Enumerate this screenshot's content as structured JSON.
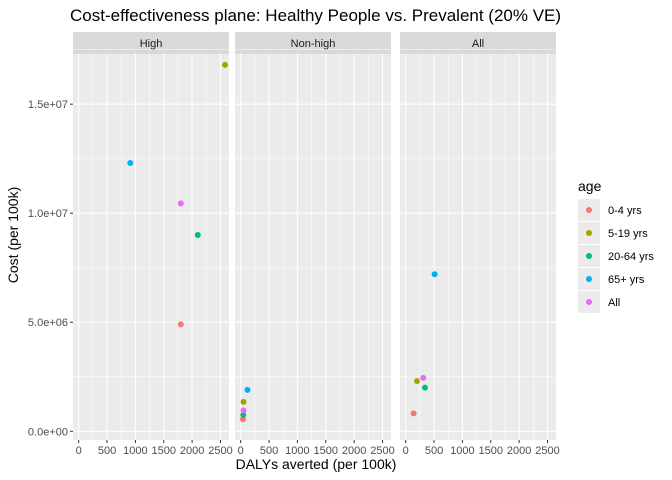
{
  "chart_data": {
    "type": "scatter",
    "title": "Cost-effectiveness plane: Healthy People vs. Prevalent (20% VE)",
    "xlabel": "DALYs averted (per 100k)",
    "ylabel": "Cost (per 100k)",
    "xlim": [
      -100,
      2650
    ],
    "ylim": [
      -400000,
      17300000
    ],
    "x_ticks": [
      0,
      500,
      1000,
      1500,
      2000,
      2500
    ],
    "x_tick_labels": [
      "0",
      "500",
      "1000",
      "1500",
      "2000",
      "2500"
    ],
    "y_ticks": [
      0,
      5000000,
      10000000,
      15000000
    ],
    "y_tick_labels": [
      "0.0e+00",
      "5.0e+06",
      "1.0e+07",
      "1.5e+07"
    ],
    "grid": true,
    "legend": {
      "title": "age",
      "placement": "right",
      "entries": [
        "0-4 yrs",
        "5-19 yrs",
        "20-64 yrs",
        "65+ yrs",
        "All"
      ]
    },
    "colors": {
      "0-4 yrs": "#F8766D",
      "5-19 yrs": "#A3A500",
      "20-64 yrs": "#00BF7D",
      "65+ yrs": "#00B0F6",
      "All": "#E76BF3"
    },
    "panel_background": "#EBEBEB",
    "strip_background": "#D9D9D9",
    "panels": [
      {
        "label": "High",
        "points": [
          {
            "series": "0-4 yrs",
            "x": 1800,
            "y": 4900000
          },
          {
            "series": "5-19 yrs",
            "x": 2580,
            "y": 16800000
          },
          {
            "series": "20-64 yrs",
            "x": 2100,
            "y": 9000000
          },
          {
            "series": "65+ yrs",
            "x": 910,
            "y": 12300000
          },
          {
            "series": "All",
            "x": 1800,
            "y": 10450000
          }
        ]
      },
      {
        "label": "Non-high",
        "points": [
          {
            "series": "0-4 yrs",
            "x": 40,
            "y": 550000
          },
          {
            "series": "5-19 yrs",
            "x": 50,
            "y": 1350000
          },
          {
            "series": "20-64 yrs",
            "x": 45,
            "y": 750000
          },
          {
            "series": "65+ yrs",
            "x": 120,
            "y": 1900000
          },
          {
            "series": "All",
            "x": 50,
            "y": 950000
          }
        ]
      },
      {
        "label": "All",
        "points": [
          {
            "series": "0-4 yrs",
            "x": 140,
            "y": 820000
          },
          {
            "series": "5-19 yrs",
            "x": 200,
            "y": 2300000
          },
          {
            "series": "20-64 yrs",
            "x": 340,
            "y": 2000000
          },
          {
            "series": "65+ yrs",
            "x": 510,
            "y": 7200000
          },
          {
            "series": "All",
            "x": 310,
            "y": 2450000
          }
        ]
      }
    ]
  }
}
